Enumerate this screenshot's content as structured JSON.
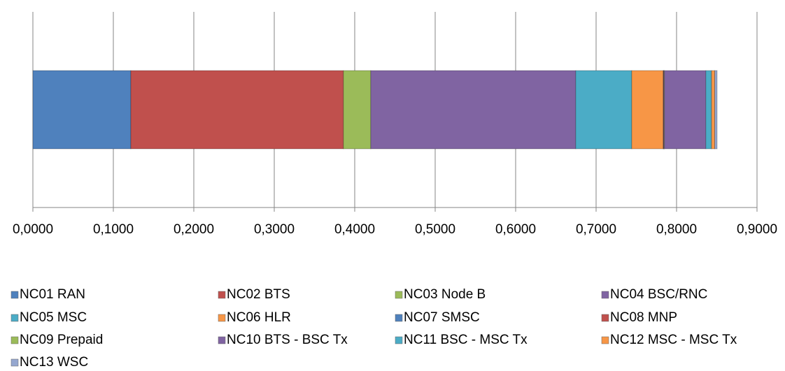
{
  "chart_data": {
    "type": "bar",
    "orientation": "horizontal",
    "stacked": true,
    "categories": [
      null
    ],
    "series": [
      {
        "name": "NC01 RAN",
        "color": "#4f81bd",
        "values": [
          0.1217
        ]
      },
      {
        "name": "NC02 BTS",
        "color": "#c0504d",
        "values": [
          0.2643
        ]
      },
      {
        "name": "NC03 Node B",
        "color": "#9bbb59",
        "values": [
          0.0339
        ]
      },
      {
        "name": "NC04 BSC/RNC",
        "color": "#8064a2",
        "values": [
          0.2548
        ]
      },
      {
        "name": "NC05 MSC",
        "color": "#4bacc6",
        "values": [
          0.0696
        ]
      },
      {
        "name": "NC06 HLR",
        "color": "#f79646",
        "values": [
          0.0391
        ]
      },
      {
        "name": "NC07 SMSC",
        "color": "#4f81bd",
        "values": [
          0.0005
        ]
      },
      {
        "name": "NC08 MNP",
        "color": "#c0504d",
        "values": [
          0.0005
        ]
      },
      {
        "name": "NC09 Prepaid",
        "color": "#9bbb59",
        "values": [
          0.0005
        ]
      },
      {
        "name": "NC10 BTS - BSC Tx",
        "color": "#8064a2",
        "values": [
          0.0515
        ]
      },
      {
        "name": "NC11 BSC - MSC Tx",
        "color": "#4bacc6",
        "values": [
          0.007
        ]
      },
      {
        "name": "NC12 MSC - MSC Tx",
        "color": "#f79646",
        "values": [
          0.004
        ]
      },
      {
        "name": "NC13 WSC",
        "color": "#95a7cf",
        "values": [
          0.003
        ]
      }
    ],
    "xlim": [
      0,
      0.9
    ],
    "xticks": [
      {
        "value": 0,
        "label": "0,0000"
      },
      {
        "value": 0.1,
        "label": "0,1000"
      },
      {
        "value": 0.2,
        "label": "0,2000"
      },
      {
        "value": 0.3,
        "label": "0,3000"
      },
      {
        "value": 0.4,
        "label": "0,4000"
      },
      {
        "value": 0.5,
        "label": "0,5000"
      },
      {
        "value": 0.6,
        "label": "0,6000"
      },
      {
        "value": 0.7,
        "label": "0,7000"
      },
      {
        "value": 0.8,
        "label": "0,8000"
      },
      {
        "value": 0.9,
        "label": "0,9000"
      }
    ],
    "grid": true,
    "legend": "bottom"
  }
}
